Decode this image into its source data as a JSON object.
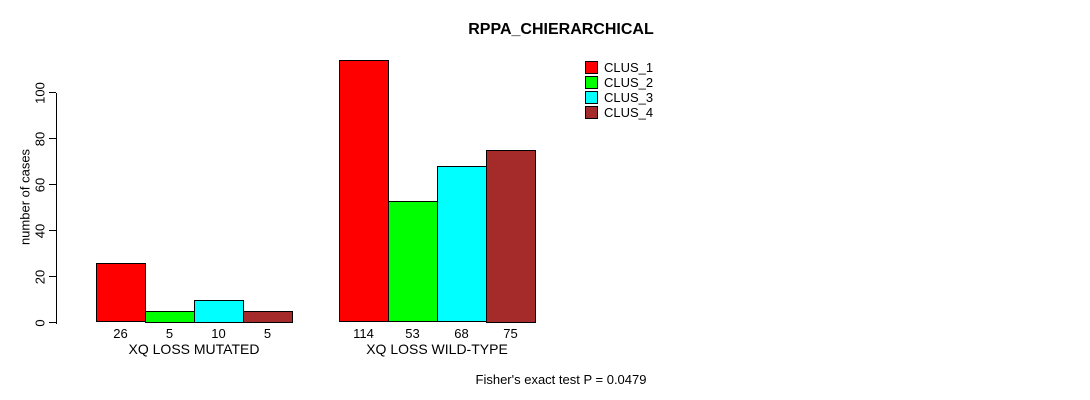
{
  "title": "RPPA_CHIERARCHICAL",
  "footer": "Fisher's exact test P = 0.0479",
  "chart_data": {
    "type": "bar",
    "grouped": true,
    "title": "RPPA_CHIERARCHICAL",
    "xlabel": "",
    "ylabel": "number of cases",
    "categories": [
      "XQ LOSS MUTATED",
      "XQ LOSS WILD-TYPE"
    ],
    "series": [
      {
        "name": "CLUS_1",
        "color": "#FF0000",
        "values": [
          26,
          114
        ]
      },
      {
        "name": "CLUS_2",
        "color": "#00FF00",
        "values": [
          5,
          53
        ]
      },
      {
        "name": "CLUS_3",
        "color": "#00FFFF",
        "values": [
          10,
          68
        ]
      },
      {
        "name": "CLUS_4",
        "color": "#A52A2A",
        "values": [
          5,
          75
        ]
      }
    ],
    "yticks": [
      0,
      20,
      40,
      60,
      80,
      100
    ],
    "ylim": [
      0,
      117
    ],
    "bar_outline_color": "#000000",
    "value_labels_shown": true,
    "grid": false,
    "legend_position": "top-right-inside",
    "annotation": "Fisher's exact test P = 0.0479"
  }
}
